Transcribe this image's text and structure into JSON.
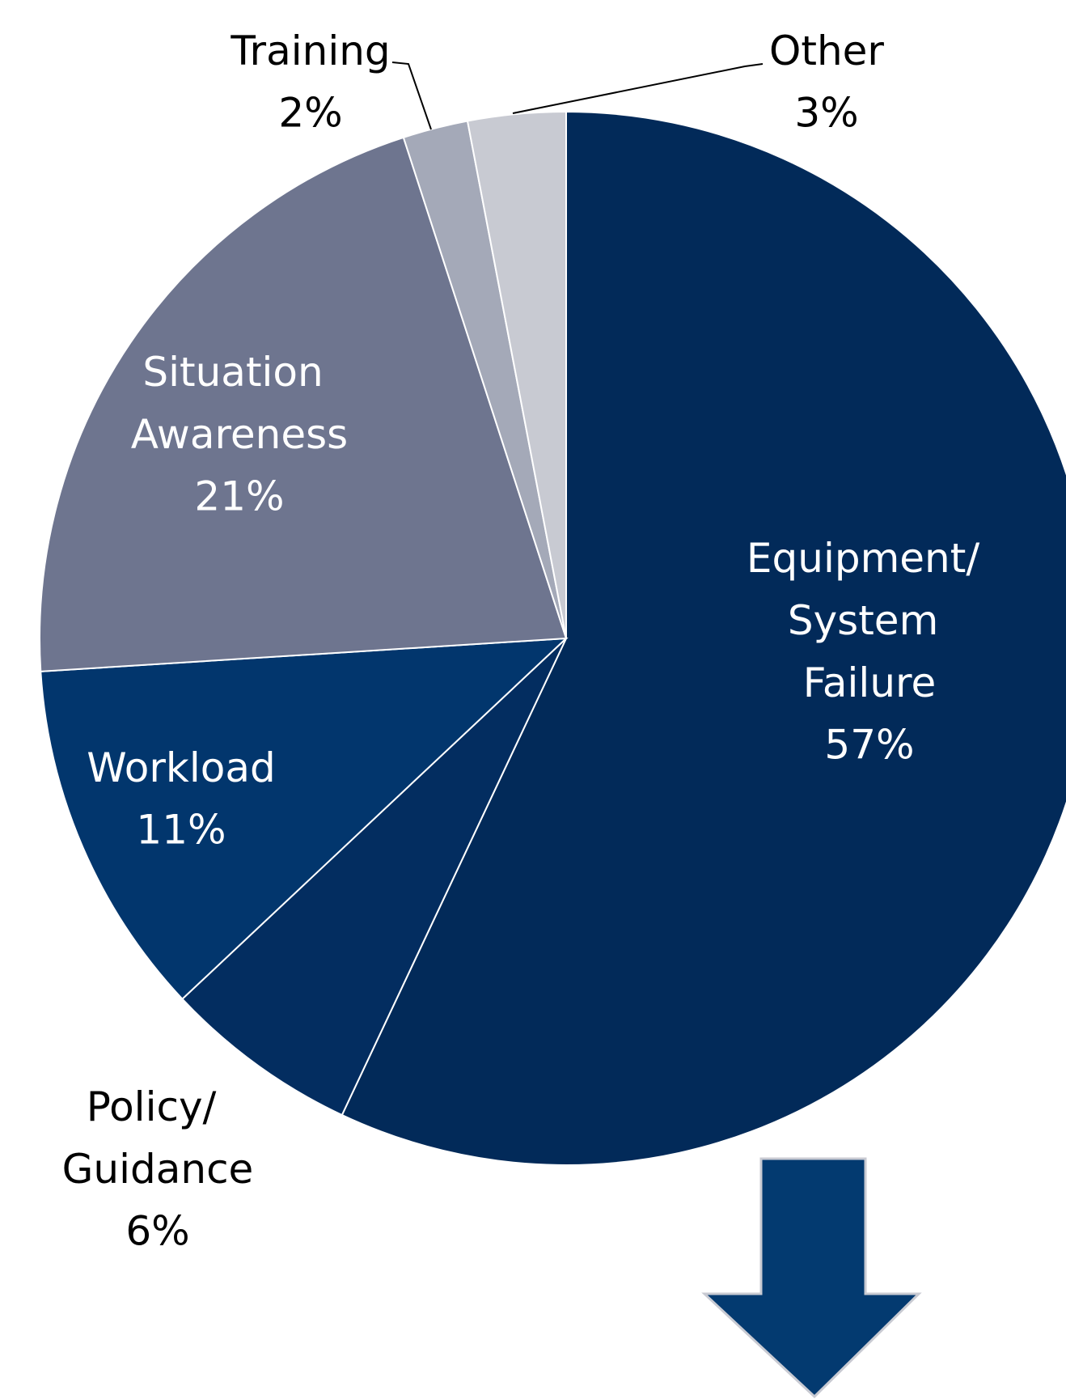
{
  "chart_data": {
    "type": "pie",
    "categories": [
      "Equipment/ System Failure",
      "Policy/ Guidance",
      "Workload",
      "Situation Awareness",
      "Training",
      "Other"
    ],
    "values": [
      57,
      6,
      11,
      21,
      2,
      3
    ],
    "value_labels": [
      "57%",
      "6%",
      "11%",
      "21%",
      "2%",
      "3%"
    ],
    "colors": [
      "#022a59",
      "#032d60",
      "#02366d",
      "#6e758f",
      "#a4a9b8",
      "#c8cad2"
    ]
  }
}
